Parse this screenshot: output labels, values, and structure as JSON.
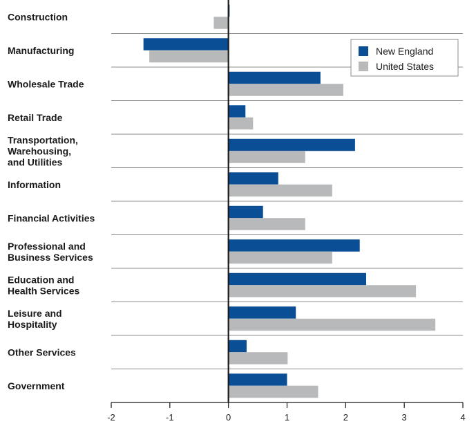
{
  "chart_data": {
    "type": "bar",
    "orientation": "horizontal",
    "categories": [
      [
        "Construction"
      ],
      [
        "Manufacturing"
      ],
      [
        "Wholesale Trade"
      ],
      [
        "Retail Trade"
      ],
      [
        "Transportation,",
        "Warehousing,",
        "and Utilities"
      ],
      [
        "Information"
      ],
      [
        "Financial Activities"
      ],
      [
        "Professional and",
        "Business Services"
      ],
      [
        "Education and",
        "Health Services"
      ],
      [
        "Leisure and",
        "Hospitality"
      ],
      [
        "Other Services"
      ],
      [
        "Government"
      ]
    ],
    "series": [
      {
        "name": "New England",
        "color": "#0a4f96",
        "values": [
          0.02,
          -1.45,
          1.57,
          0.29,
          2.16,
          0.85,
          0.59,
          2.24,
          2.35,
          1.15,
          0.31,
          1.0
        ]
      },
      {
        "name": "United States",
        "color": "#b8b9bb",
        "values": [
          -0.25,
          -1.35,
          1.96,
          0.42,
          1.31,
          1.77,
          1.31,
          1.77,
          3.2,
          3.53,
          1.01,
          1.53
        ]
      }
    ],
    "xlim": [
      -2,
      4
    ],
    "xticks": [
      "-2",
      "-1",
      "0",
      "1",
      "2",
      "3",
      "4"
    ],
    "legend_position": "top-right",
    "title": "",
    "xlabel": "",
    "ylabel": ""
  }
}
